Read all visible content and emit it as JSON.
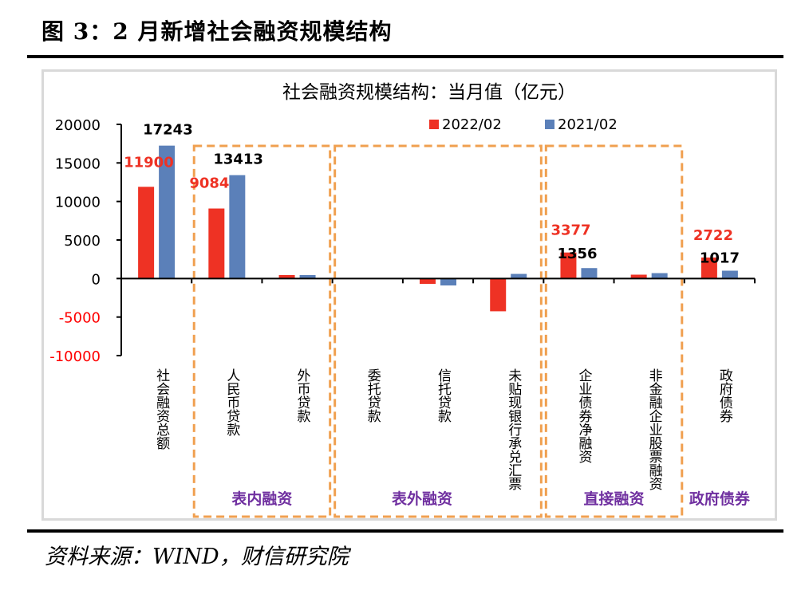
{
  "figure_title": "图 3：2 月新增社会融资规模结构",
  "source_note": "资料来源：WIND，财信研究院",
  "chart_data": {
    "type": "bar",
    "title": "社会融资规模结构：当月值（亿元）",
    "xlabel": "",
    "ylabel": "",
    "ylim": [
      -10000,
      20000
    ],
    "yticks": [
      20000,
      15000,
      10000,
      5000,
      0,
      -5000,
      -10000
    ],
    "ytick_labels": [
      "20000",
      "15000",
      "10000",
      "5000",
      "0",
      "-5000",
      "-10000"
    ],
    "negative_tick_color": "#ff0000",
    "grid": false,
    "legend_position": "top-right",
    "categories": [
      "社会融资总额",
      "人民币贷款",
      "外币贷款",
      "委托贷款",
      "信托贷款",
      "未贴现银行承兑汇票",
      "企业债券净融资",
      "非金融企业股票融资",
      "政府债券"
    ],
    "series": [
      {
        "name": "2022/02",
        "color": "#ee3224",
        "values": [
          11900,
          9084,
          450,
          0,
          -700,
          -4250,
          3377,
          500,
          2722
        ]
      },
      {
        "name": "2021/02",
        "color": "#5b80b9",
        "values": [
          17243,
          13413,
          450,
          0,
          -900,
          600,
          1356,
          700,
          1017
        ]
      }
    ],
    "data_labels": [
      {
        "series": "2022/02",
        "category": "社会融资总额",
        "text": "11900",
        "color": "#ee3224"
      },
      {
        "series": "2021/02",
        "category": "社会融资总额",
        "text": "17243",
        "color": "#000000"
      },
      {
        "series": "2022/02",
        "category": "人民币贷款",
        "text": "9084",
        "color": "#ee3224"
      },
      {
        "series": "2021/02",
        "category": "人民币贷款",
        "text": "13413",
        "color": "#000000"
      },
      {
        "series": "2022/02",
        "category": "企业债券净融资",
        "text": "3377",
        "color": "#ee3224"
      },
      {
        "series": "2021/02",
        "category": "企业债券净融资",
        "text": "1356",
        "color": "#000000"
      },
      {
        "series": "2022/02",
        "category": "政府债券",
        "text": "2722",
        "color": "#ee3224"
      },
      {
        "series": "2021/02",
        "category": "政府债券",
        "text": "1017",
        "color": "#000000"
      }
    ],
    "groups": [
      {
        "label": "表内融资",
        "categories": [
          "人民币贷款",
          "外币贷款"
        ],
        "boxed": true
      },
      {
        "label": "表外融资",
        "categories": [
          "委托贷款",
          "信托贷款",
          "未贴现银行承兑汇票"
        ],
        "boxed": true
      },
      {
        "label": "直接融资",
        "categories": [
          "企业债券净融资",
          "非金融企业股票融资"
        ],
        "boxed": true
      },
      {
        "label": "政府债券",
        "categories": [
          "政府债券"
        ],
        "boxed": false
      }
    ],
    "group_label_color": "#7030a0",
    "box_color": "#f0a050"
  }
}
